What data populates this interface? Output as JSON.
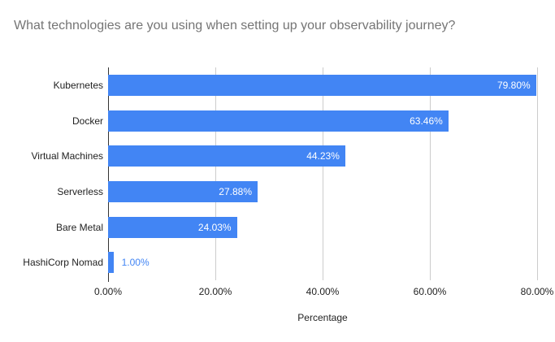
{
  "chart_data": {
    "type": "bar",
    "orientation": "horizontal",
    "title": "What technologies are you using when setting up your observability journey?",
    "categories": [
      "Kubernetes",
      "Docker",
      "Virtual Machines",
      "Serverless",
      "Bare Metal",
      "HashiCorp Nomad"
    ],
    "values": [
      79.8,
      63.46,
      44.23,
      27.88,
      24.03,
      1.0
    ],
    "value_labels": [
      "79.80%",
      "63.46%",
      "44.23%",
      "27.88%",
      "24.03%",
      "1.00%"
    ],
    "xlabel": "Percentage",
    "ylabel": "",
    "x_ticks": [
      "0.00%",
      "20.00%",
      "40.00%",
      "60.00%",
      "80.00%"
    ],
    "xlim": [
      0,
      80
    ],
    "grid": "vertical",
    "legend": "none",
    "colors": {
      "bar": "#4285f4",
      "title_text": "#757575",
      "axis_text": "#222222",
      "gridline": "#cccccc",
      "baseline": "#333333",
      "label_inside": "#ffffff",
      "label_outside": "#4285f4"
    }
  }
}
